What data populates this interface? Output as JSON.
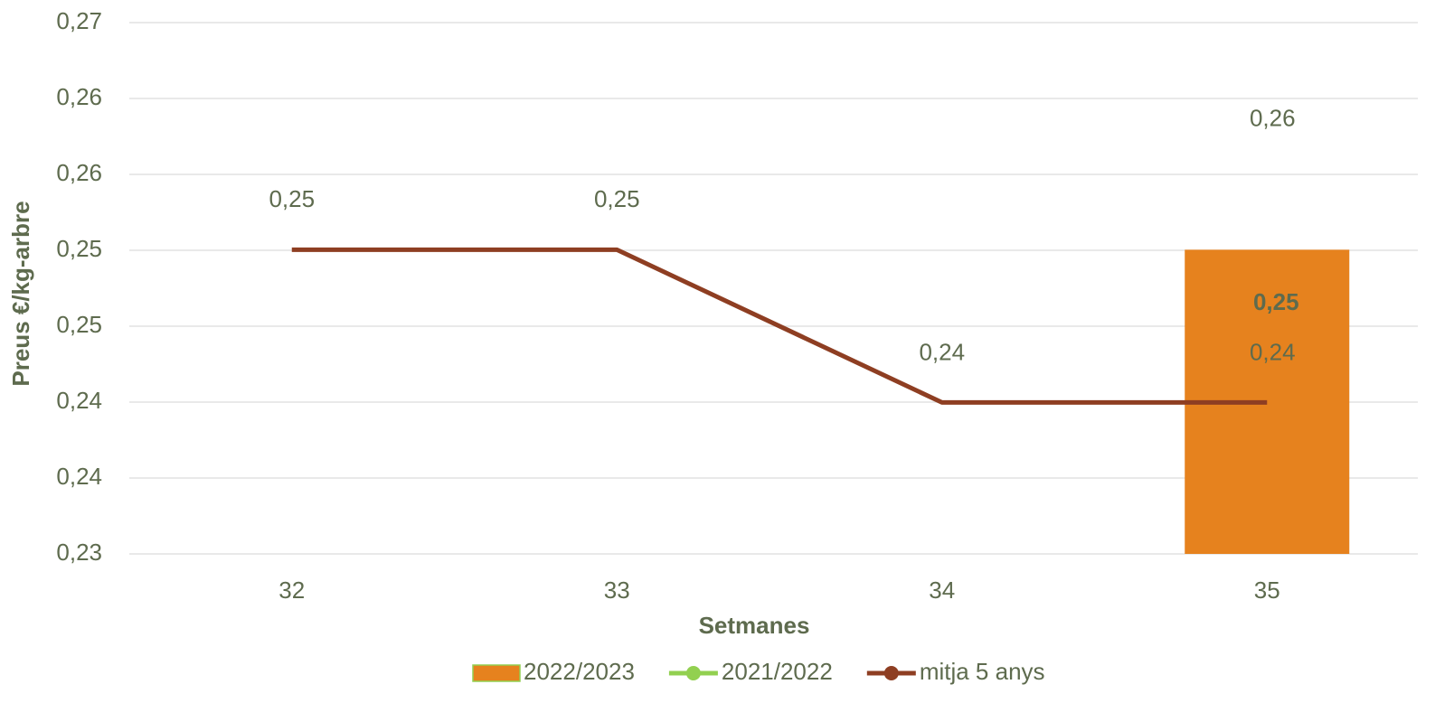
{
  "chart_data": {
    "type": "bar-line",
    "x_label": "Setmanes",
    "y_label": "Preus €/kg-arbre",
    "categories": [
      "32",
      "33",
      "34",
      "35"
    ],
    "ylim": [
      0.23,
      0.27
    ],
    "yticks": [
      {
        "value": 0.23,
        "label": "0,23"
      },
      {
        "value": 0.235714,
        "label": "0,24"
      },
      {
        "value": 0.241429,
        "label": "0,24"
      },
      {
        "value": 0.247143,
        "label": "0,25"
      },
      {
        "value": 0.252857,
        "label": "0,25"
      },
      {
        "value": 0.258571,
        "label": "0,26"
      },
      {
        "value": 0.264286,
        "label": "0,26"
      },
      {
        "value": 0.27,
        "label": "0,27"
      }
    ],
    "grid": true,
    "legend": "bottom",
    "series": [
      {
        "name": "2022/2023",
        "kind": "bar",
        "color": "#e6821e",
        "values": [
          null,
          null,
          null,
          0.2529
        ],
        "value_labels": [
          null,
          null,
          null,
          "0,25"
        ]
      },
      {
        "name": "2021/2022",
        "kind": "line",
        "color": "#92d050",
        "values": [
          null,
          null,
          null,
          0.259
        ],
        "value_labels": [
          null,
          null,
          null,
          "0,26"
        ]
      },
      {
        "name": "mitja 5 anys",
        "kind": "line",
        "color": "#8e3e22",
        "values": [
          0.2529,
          0.2529,
          0.2414,
          0.2414
        ],
        "value_labels": [
          "0,25",
          "0,25",
          "0,24",
          "0,24"
        ]
      }
    ]
  }
}
